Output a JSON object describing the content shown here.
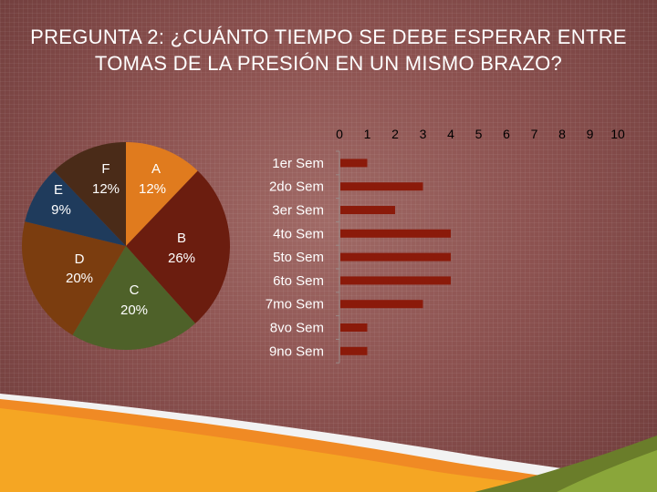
{
  "slide": {
    "title": "PREGUNTA 2: ¿CUÁNTO TIEMPO SE DEBE ESPERAR ENTRE TOMAS DE LA PRESIÓN EN UN MISMO BRAZO?"
  },
  "chart_data": [
    {
      "type": "pie",
      "labels": [
        "A",
        "B",
        "C",
        "D",
        "E",
        "F"
      ],
      "values": [
        12,
        26,
        20,
        20,
        9,
        12
      ],
      "value_labels": [
        "12%",
        "26%",
        "20%",
        "20%",
        "9%",
        "12%"
      ],
      "colors": [
        "#e07b1e",
        "#6b1d0f",
        "#4e6129",
        "#7b3d0f",
        "#1f3b5c",
        "#4a2b18"
      ]
    },
    {
      "type": "bar",
      "orientation": "horizontal",
      "categories": [
        "1er Sem",
        "2do Sem",
        "3er Sem",
        "4to Sem",
        "5to Sem",
        "6to Sem",
        "7mo Sem",
        "8vo Sem",
        "9no Sem"
      ],
      "values": [
        1,
        3,
        2,
        4,
        4,
        4,
        3,
        1,
        1
      ],
      "xlim": [
        0,
        10
      ],
      "xticks": [
        "0",
        "1",
        "2",
        "3",
        "4",
        "5",
        "6",
        "7",
        "8",
        "9",
        "10"
      ],
      "bar_color": "#8b1a0a",
      "grid": false
    }
  ]
}
